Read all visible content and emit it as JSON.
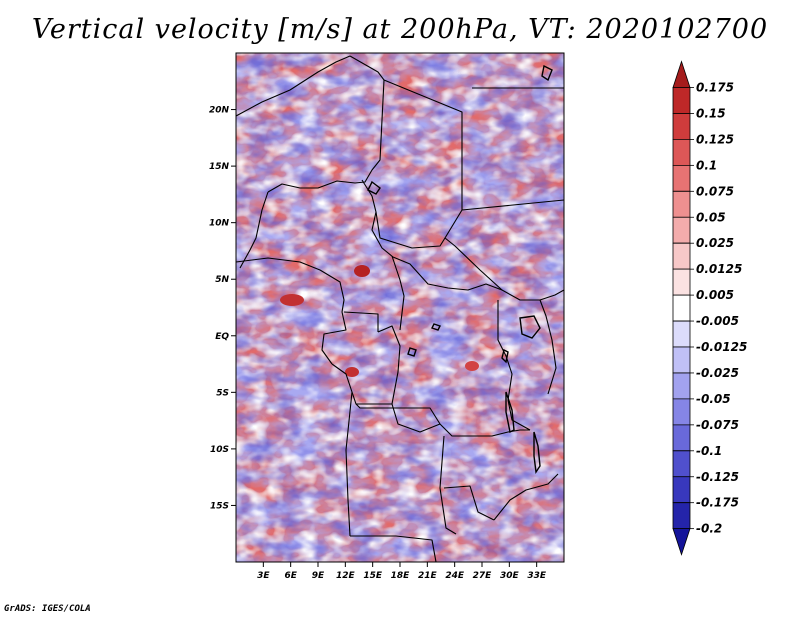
{
  "title": "Vertical velocity [m/s] at 200hPa, VT: 2020102700",
  "credit": "GrADS: IGES/COLA",
  "chart_data": {
    "type": "heatmap",
    "title": "Vertical velocity [m/s] at 200hPa, VT: 2020102700",
    "variable": "Vertical velocity",
    "units": "m/s",
    "level": "200hPa",
    "valid_time": "2020102700",
    "lon_range": [
      0,
      36
    ],
    "lat_range": [
      -20,
      25
    ],
    "x_ticks": [
      {
        "value": 3,
        "label": "3E"
      },
      {
        "value": 6,
        "label": "6E"
      },
      {
        "value": 9,
        "label": "9E"
      },
      {
        "value": 12,
        "label": "12E"
      },
      {
        "value": 15,
        "label": "15E"
      },
      {
        "value": 18,
        "label": "18E"
      },
      {
        "value": 21,
        "label": "21E"
      },
      {
        "value": 24,
        "label": "24E"
      },
      {
        "value": 27,
        "label": "27E"
      },
      {
        "value": 30,
        "label": "30E"
      },
      {
        "value": 33,
        "label": "33E"
      }
    ],
    "y_ticks": [
      {
        "value": 20,
        "label": "20N"
      },
      {
        "value": 15,
        "label": "15N"
      },
      {
        "value": 10,
        "label": "10N"
      },
      {
        "value": 5,
        "label": "5N"
      },
      {
        "value": 0,
        "label": "EQ"
      },
      {
        "value": -5,
        "label": "5S"
      },
      {
        "value": -10,
        "label": "10S"
      },
      {
        "value": -15,
        "label": "15S"
      }
    ],
    "colorbar": {
      "levels": [
        "0.175",
        "0.15",
        "0.125",
        "0.1",
        "0.075",
        "0.05",
        "0.025",
        "0.0125",
        "0.005",
        "-0.005",
        "-0.0125",
        "-0.025",
        "-0.05",
        "-0.075",
        "-0.1",
        "-0.125",
        "-0.175",
        "-0.2"
      ],
      "colors": [
        "#a51c1c",
        "#be2828",
        "#cf3c3c",
        "#dd5757",
        "#e77373",
        "#ee9090",
        "#f3acac",
        "#f7c8c8",
        "#fbe2e2",
        "#ffffff",
        "#dcdcfb",
        "#c0c0f6",
        "#a2a2ef",
        "#8585e6",
        "#6969da",
        "#5050cd",
        "#3838bd",
        "#2424aa",
        "#14149a"
      ]
    }
  }
}
